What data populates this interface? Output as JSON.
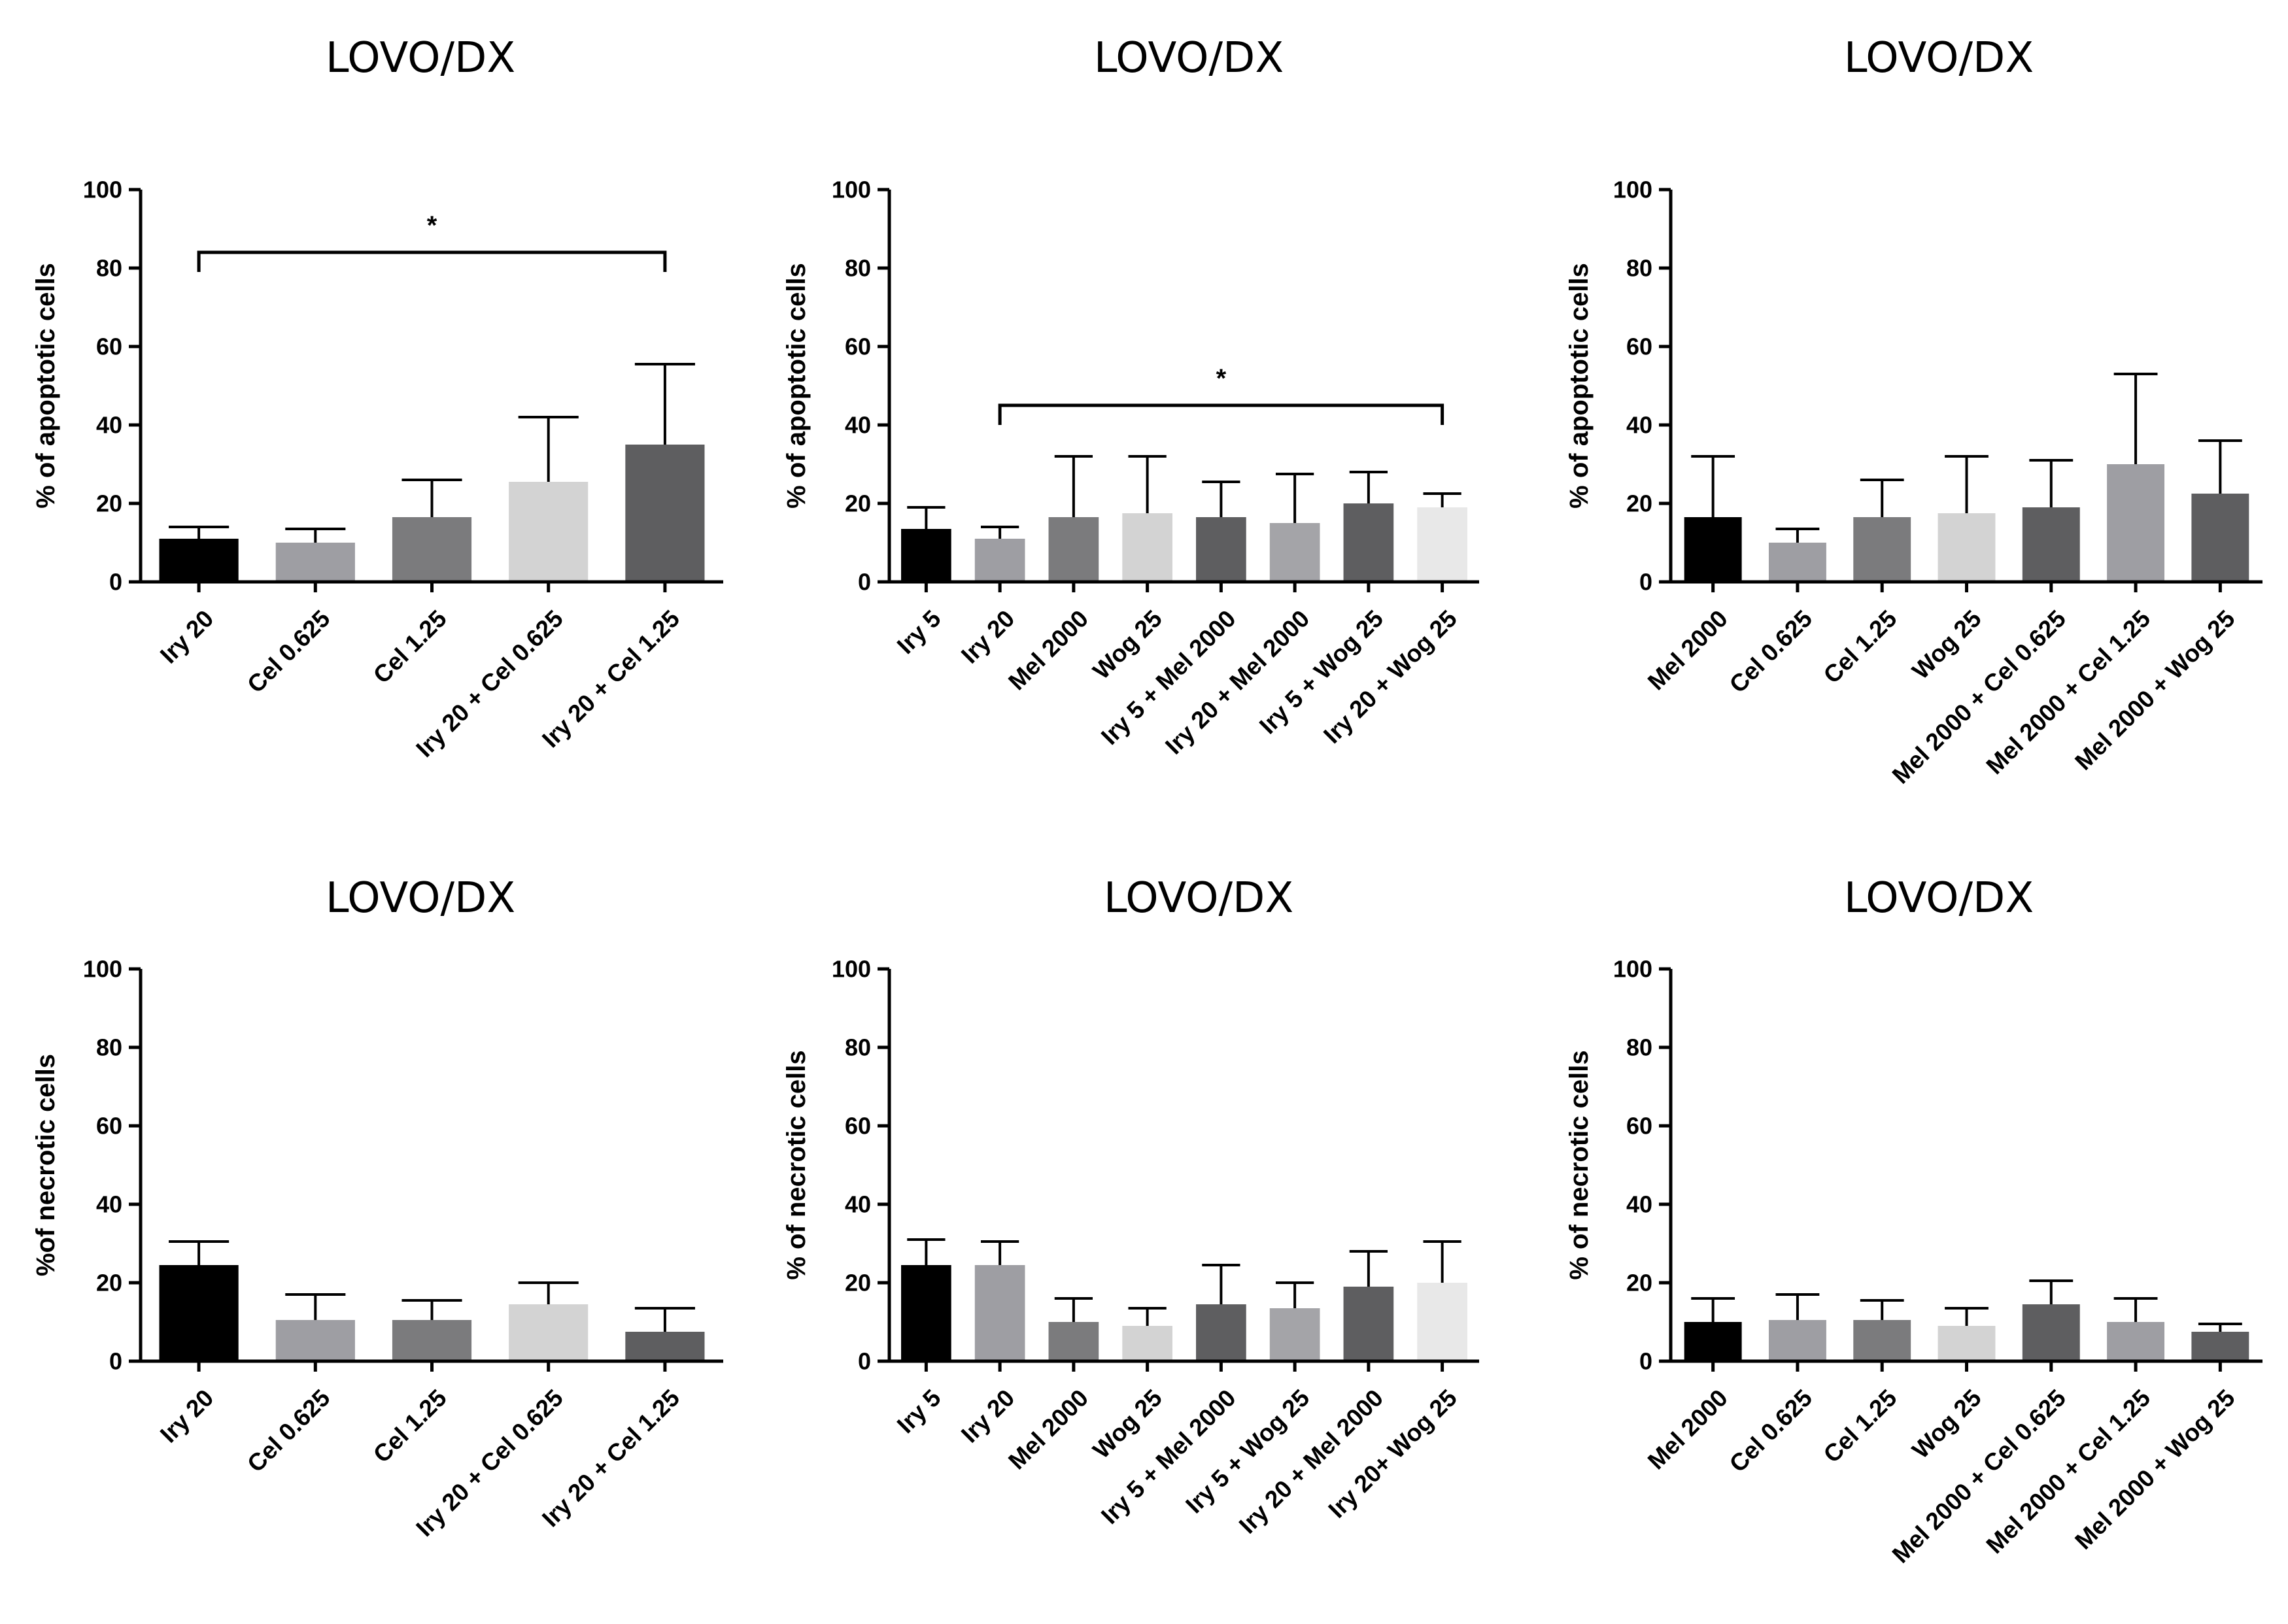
{
  "chart_data": [
    {
      "type": "bar",
      "title": "LOVO/DX",
      "ylabel": "% of apoptotic cells",
      "xlabel": "",
      "ylim": [
        0,
        100
      ],
      "yticks": [
        0,
        20,
        40,
        60,
        80,
        100
      ],
      "categories": [
        "Iry 20",
        "Cel 0.625",
        "Cel 1.25",
        "Iry 20 + Cel 0.625",
        "Iry 20 + Cel 1.25"
      ],
      "values": [
        11,
        10,
        16.5,
        25.5,
        35
      ],
      "errors": [
        3,
        3.5,
        9.5,
        16.5,
        20.5
      ],
      "colors": [
        "#000000",
        "#9e9ea3",
        "#7b7b7d",
        "#d3d3d3",
        "#5e5e60"
      ],
      "significance": [
        {
          "from": 0,
          "to": 4,
          "level": 84,
          "label": "*"
        }
      ]
    },
    {
      "type": "bar",
      "title": "LOVO/DX",
      "ylabel": "% of apoptotic cells",
      "xlabel": "",
      "ylim": [
        0,
        100
      ],
      "yticks": [
        0,
        20,
        40,
        60,
        80,
        100
      ],
      "categories": [
        "Iry 5",
        "Iry 20",
        "Mel 2000",
        "Wog 25",
        "Iry 5 + Mel 2000",
        "Iry 20 + Mel 2000",
        "Iry 5 + Wog 25",
        "Iry 20 + Wog 25"
      ],
      "values": [
        13.5,
        11,
        16.5,
        17.5,
        16.5,
        15,
        20,
        19
      ],
      "errors": [
        5.5,
        3,
        15.5,
        14.5,
        9,
        12.5,
        8,
        3.5
      ],
      "colors": [
        "#000000",
        "#9e9ea3",
        "#7b7b7d",
        "#d3d3d3",
        "#5e5e60",
        "#a4a4a8",
        "#5e5e60",
        "#e8e8e8"
      ],
      "significance": [
        {
          "from": 1,
          "to": 7,
          "level": 45,
          "label": "*"
        }
      ]
    },
    {
      "type": "bar",
      "title": "LOVO/DX",
      "ylabel": "% of apoptotic cells",
      "xlabel": "",
      "ylim": [
        0,
        100
      ],
      "yticks": [
        0,
        20,
        40,
        60,
        80,
        100
      ],
      "categories": [
        "Mel 2000",
        "Cel 0.625",
        "Cel 1.25",
        "Wog 25",
        "Mel 2000 + Cel 0.625",
        "Mel 2000 + Cel 1.25",
        "Mel 2000 + Wog 25"
      ],
      "values": [
        16.5,
        10,
        16.5,
        17.5,
        19,
        30,
        22.5
      ],
      "errors": [
        15.5,
        3.5,
        9.5,
        14.5,
        12,
        23,
        13.5
      ],
      "colors": [
        "#000000",
        "#9e9ea3",
        "#7b7b7d",
        "#d3d3d3",
        "#5e5e60",
        "#9e9ea3",
        "#5e5e60"
      ],
      "significance": []
    },
    {
      "type": "bar",
      "title": "LOVO/DX",
      "ylabel": "%of necrotic cells",
      "xlabel": "",
      "ylim": [
        0,
        100
      ],
      "yticks": [
        0,
        20,
        40,
        60,
        80,
        100
      ],
      "categories": [
        "Iry 20",
        "Cel 0.625",
        "Cel 1.25",
        "Iry 20 + Cel 0.625",
        "Iry 20 + Cel 1.25"
      ],
      "values": [
        24.5,
        10.5,
        10.5,
        14.5,
        7.5
      ],
      "errors": [
        6,
        6.5,
        5,
        5.5,
        6
      ],
      "colors": [
        "#000000",
        "#9e9ea3",
        "#7b7b7d",
        "#d3d3d3",
        "#5e5e60"
      ],
      "significance": []
    },
    {
      "type": "bar",
      "title": "LOVO/DX",
      "ylabel": "% of necrotic cells",
      "xlabel": "",
      "ylim": [
        0,
        100
      ],
      "yticks": [
        0,
        20,
        40,
        60,
        80,
        100
      ],
      "categories": [
        "Iry 5",
        "Iry 20",
        "Mel 2000",
        "Wog 25",
        "Iry 5 + Mel 2000",
        "Iry 5 + Wog 25",
        "Iry 20 + Mel 2000",
        "Iry 20+ Wog 25"
      ],
      "values": [
        24.5,
        24.5,
        10,
        9,
        14.5,
        13.5,
        19,
        20
      ],
      "errors": [
        6.5,
        6,
        6,
        4.5,
        10,
        6.5,
        9,
        10.5
      ],
      "colors": [
        "#000000",
        "#9e9ea3",
        "#7b7b7d",
        "#d3d3d3",
        "#5e5e60",
        "#a4a4a8",
        "#5e5e60",
        "#e8e8e8"
      ],
      "significance": []
    },
    {
      "type": "bar",
      "title": "LOVO/DX",
      "ylabel": "% of necrotic cells",
      "xlabel": "",
      "ylim": [
        0,
        100
      ],
      "yticks": [
        0,
        20,
        40,
        60,
        80,
        100
      ],
      "categories": [
        "Mel 2000",
        "Cel 0.625",
        "Cel 1.25",
        "Wog 25",
        "Mel 2000 + Cel 0.625",
        "Mel 2000 + Cel 1.25",
        "Mel 2000 + Wog 25"
      ],
      "values": [
        10,
        10.5,
        10.5,
        9,
        14.5,
        10,
        7.5
      ],
      "errors": [
        6,
        6.5,
        5,
        4.5,
        6,
        6,
        2
      ],
      "colors": [
        "#000000",
        "#9e9ea3",
        "#7b7b7d",
        "#d3d3d3",
        "#5e5e60",
        "#9e9ea3",
        "#5e5e60"
      ],
      "significance": []
    }
  ]
}
